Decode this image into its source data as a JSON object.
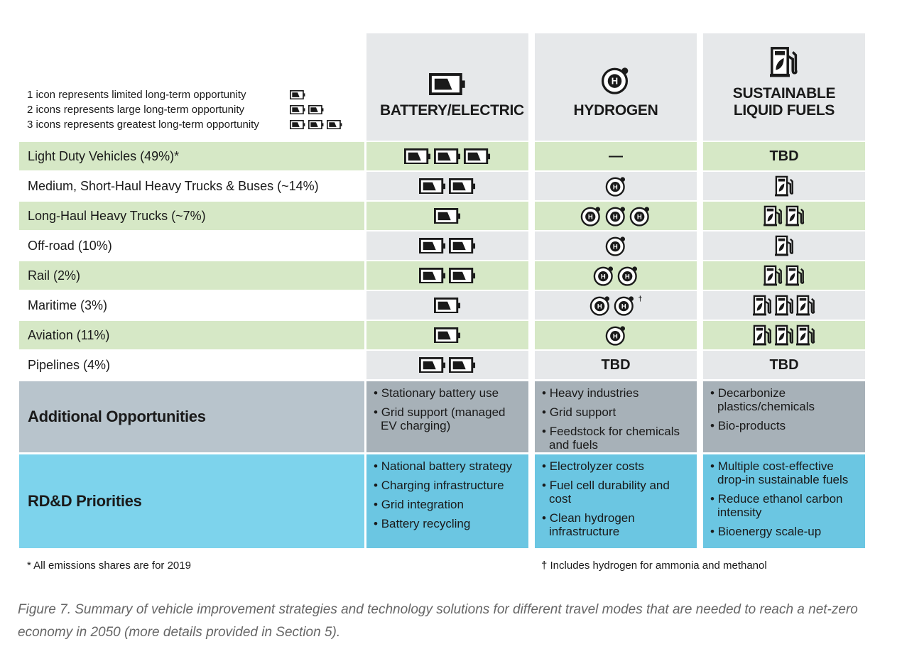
{
  "legend": [
    {
      "text": "1 icon represents limited long-term opportunity",
      "count": 1
    },
    {
      "text": "2 icons represents large long-term opportunity",
      "count": 2
    },
    {
      "text": "3 icons represents greatest long-term opportunity",
      "count": 3
    }
  ],
  "columns": [
    "BATTERY/ELECTRIC",
    "HYDROGEN",
    "SUSTAINABLE LIQUID FUELS"
  ],
  "rows": [
    {
      "label": "Light Duty Vehicles (49%)*",
      "values": [
        3,
        "—",
        "TBD"
      ]
    },
    {
      "label": "Medium, Short-Haul Heavy Trucks & Buses (~14%)",
      "values": [
        2,
        1,
        1
      ]
    },
    {
      "label": "Long-Haul Heavy Trucks (~7%)",
      "values": [
        1,
        3,
        2
      ]
    },
    {
      "label": "Off-road (10%)",
      "values": [
        2,
        1,
        1
      ]
    },
    {
      "label": "Rail (2%)",
      "values": [
        2,
        2,
        2
      ]
    },
    {
      "label": "Maritime (3%)",
      "values": [
        1,
        {
          "count": 2,
          "sup": "†"
        },
        3
      ]
    },
    {
      "label": "Aviation (11%)",
      "values": [
        1,
        1,
        3
      ]
    },
    {
      "label": "Pipelines (4%)",
      "values": [
        2,
        "TBD",
        "TBD"
      ]
    }
  ],
  "additional": {
    "label": "Additional Opportunities",
    "items": [
      [
        "Stationary battery use",
        "Grid support (managed EV charging)"
      ],
      [
        "Heavy industries",
        "Grid support",
        "Feedstock for chemicals and fuels"
      ],
      [
        "Decarbonize plastics/chemicals",
        "Bio-products"
      ]
    ]
  },
  "rdd": {
    "label": "RD&D Priorities",
    "items": [
      [
        "National battery strategy",
        "Charging infrastructure",
        "Grid integration",
        "Battery recycling"
      ],
      [
        "Electrolyzer costs",
        "Fuel cell durability and cost",
        "Clean hydrogen infrastructure"
      ],
      [
        "Multiple cost-effective drop-in sustainable fuels",
        "Reduce ethanol carbon intensity",
        "Bioenergy scale-up"
      ]
    ]
  },
  "footnotes": [
    "* All emissions shares are for 2019",
    "† Includes hydrogen for ammonia and methanol"
  ],
  "caption": "Figure 7. Summary of vehicle improvement strategies and technology solutions for different travel modes that are needed to reach a net-zero economy in 2050 (more details provided in Section 5)."
}
